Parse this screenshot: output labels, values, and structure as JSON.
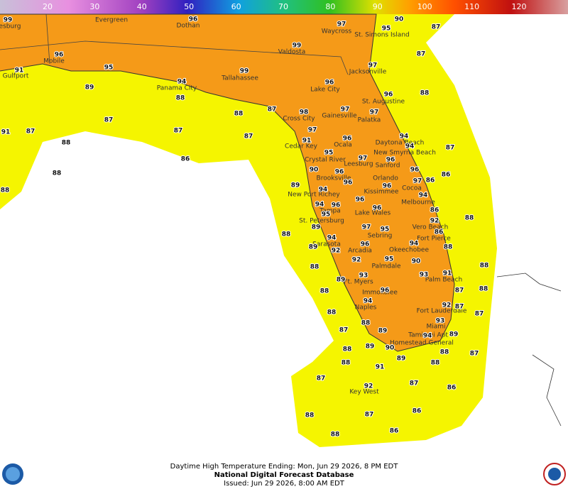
{
  "legend": {
    "ticks": [
      20,
      30,
      40,
      50,
      60,
      70,
      80,
      90,
      100,
      110,
      120
    ]
  },
  "cities": [
    "esburg",
    "Evergreen",
    "Dothan",
    "Waycross",
    "St. Simons Island",
    "Mobile",
    "Valdosta",
    "Jacksonville",
    "Gulfport",
    "Tallahassee",
    "Panama City",
    "Lake City",
    "St. Augustine",
    "Gainesville",
    "Palatka",
    "Cross City",
    "Ocala",
    "Daytona Beach",
    "Cedar Key",
    "New Smyrna Beach",
    "Crystal River",
    "Leesburg",
    "Sanford",
    "Brooksville",
    "Orlando",
    "Cocoa",
    "Kissimmee",
    "New Port Richey",
    "Melbourne",
    "Tampa",
    "Lake Wales",
    "St. Petersburg",
    "Vero Beach",
    "Sebring",
    "Fort Pierce",
    "Sarasota",
    "Arcadia",
    "Okeechobee",
    "Palmdale",
    "Palm Beach",
    "Ft. Myers",
    "Immokalee",
    "Fort Lauderdale",
    "Naples",
    "Miami",
    "Tamiami Apt",
    "Homestead General",
    "Key West"
  ],
  "temperatures": [
    99,
    96,
    97,
    95,
    90,
    87,
    96,
    99,
    87,
    91,
    95,
    99,
    97,
    89,
    94,
    96,
    88,
    96,
    88,
    87,
    98,
    97,
    97,
    88,
    87,
    91,
    87,
    87,
    97,
    87,
    94,
    88,
    96,
    91,
    94,
    87,
    95,
    97,
    96,
    86,
    90,
    96,
    96,
    86,
    88,
    96,
    97,
    86,
    96,
    89,
    94,
    88,
    94,
    96,
    94,
    96,
    96,
    86,
    95,
    92,
    88,
    89,
    97,
    95,
    86,
    88,
    94,
    94,
    96,
    89,
    92,
    88,
    92,
    95,
    90,
    88,
    88,
    91,
    93,
    93,
    89,
    88,
    96,
    87,
    88,
    94,
    92,
    87,
    88,
    87,
    93,
    88,
    87,
    89,
    94,
    89,
    88,
    89,
    90,
    88,
    87,
    89,
    88,
    88,
    91,
    87,
    87,
    92,
    86,
    88,
    87,
    86,
    88,
    86
  ],
  "footer": {
    "period": "Daytime High Temperature Ending: Mon, Jun 29 2026, 8 PM EDT",
    "title": "National Digital Forecast Database",
    "issued": "Issued: Jun 29 2026, 8:00 AM EDT"
  }
}
